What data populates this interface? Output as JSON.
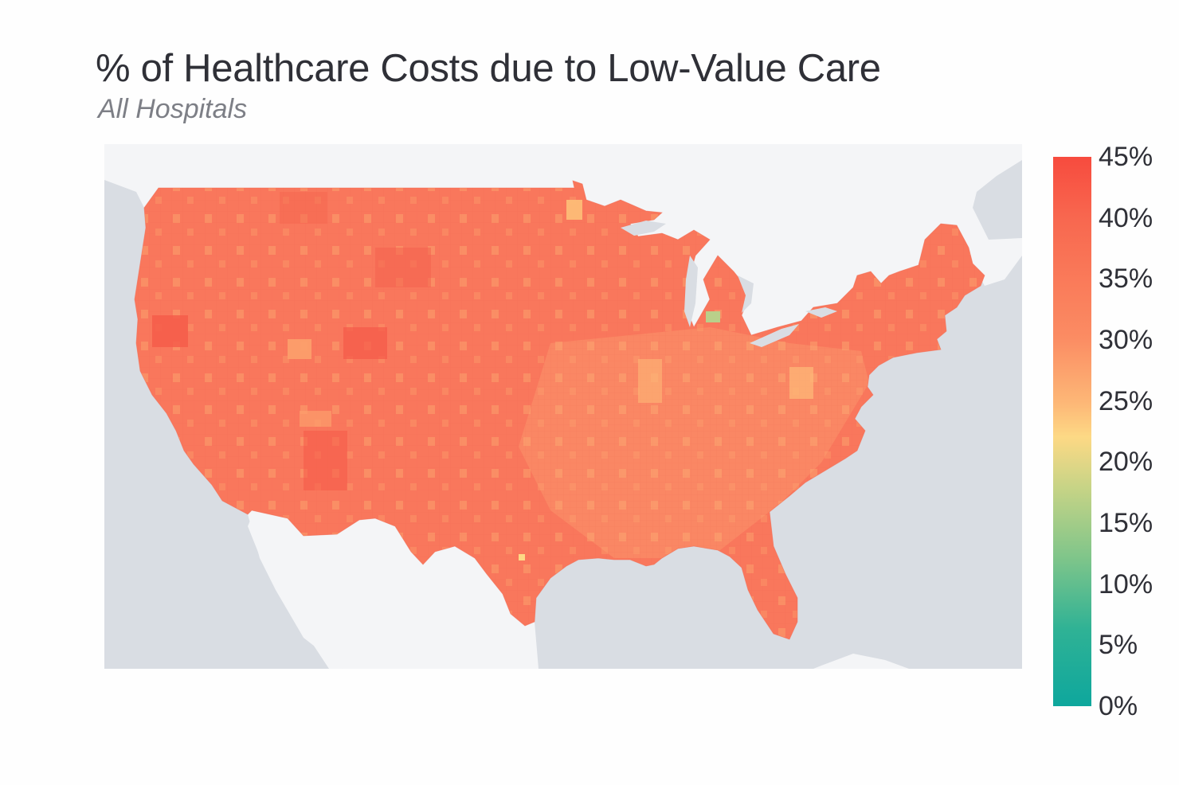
{
  "title": "% of Healthcare Costs due to Low-Value Care",
  "subtitle": "All Hospitals",
  "legend": {
    "type": "color-scale",
    "min": 0,
    "max": 45,
    "ticks": [
      "45%",
      "40%",
      "35%",
      "30%",
      "25%",
      "20%",
      "15%",
      "10%",
      "5%",
      "0%"
    ],
    "colors": {
      "high": "#f74b3e",
      "mid": "#fdd985",
      "low": "#0ea79d"
    }
  },
  "map": {
    "region": "Contiguous United States",
    "unit": "county",
    "value_range_observed": [
      17,
      44
    ],
    "typical_value": 37,
    "land_color_us": "#f9775c",
    "land_color_other": "#f4f5f7",
    "water_color": "#d9dde3"
  }
}
